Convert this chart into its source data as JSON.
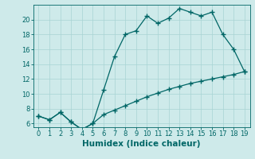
{
  "title": "",
  "xlabel": "Humidex (Indice chaleur)",
  "ylabel": "",
  "background_color": "#ceeaea",
  "line_color": "#006666",
  "x_values": [
    0,
    1,
    2,
    3,
    4,
    5,
    6,
    7,
    8,
    9,
    10,
    11,
    12,
    13,
    14,
    15,
    16,
    17,
    18,
    19
  ],
  "y_curve": [
    7,
    6.5,
    7.5,
    6.2,
    5.2,
    6.0,
    10.5,
    15.0,
    18.0,
    18.5,
    20.5,
    19.5,
    20.2,
    21.5,
    21.0,
    20.5,
    21.0,
    18.0,
    16.0,
    13.0
  ],
  "y_line": [
    7,
    6.5,
    7.5,
    6.2,
    5.2,
    6.0,
    7.2,
    7.8,
    8.4,
    9.0,
    9.6,
    10.1,
    10.6,
    11.0,
    11.4,
    11.7,
    12.0,
    12.3,
    12.6,
    13.0
  ],
  "xlim": [
    -0.5,
    19.5
  ],
  "ylim": [
    5.5,
    22
  ],
  "yticks": [
    6,
    8,
    10,
    12,
    14,
    16,
    18,
    20
  ],
  "xticks": [
    0,
    1,
    2,
    3,
    4,
    5,
    6,
    7,
    8,
    9,
    10,
    11,
    12,
    13,
    14,
    15,
    16,
    17,
    18,
    19
  ],
  "grid_color": "#a8d4d4",
  "marker": "+",
  "markersize": 4,
  "linewidth": 0.9,
  "xlabel_fontsize": 7.5,
  "tick_fontsize": 6.0
}
